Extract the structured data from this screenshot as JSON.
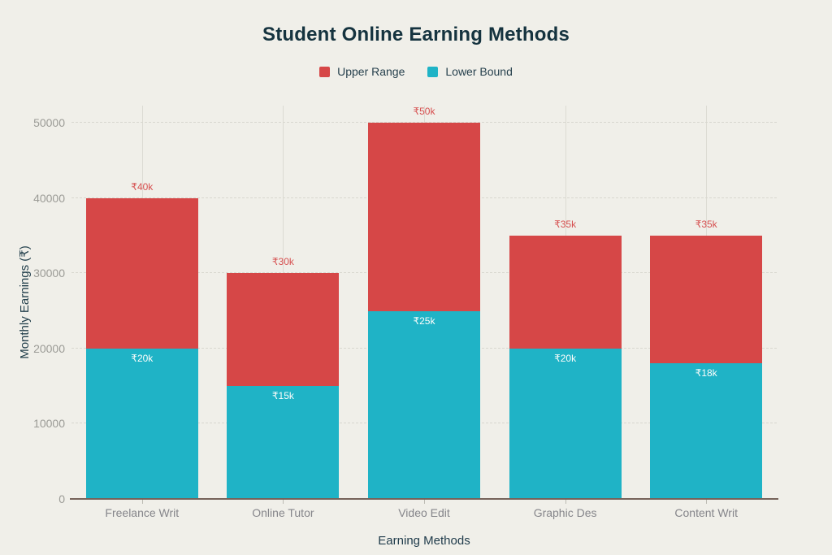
{
  "title": "Student Online Earning Methods",
  "legend": {
    "items": [
      {
        "label": "Upper Range",
        "color": "#d64747"
      },
      {
        "label": "Lower Bound",
        "color": "#1fb3c6"
      }
    ]
  },
  "chart_data": {
    "type": "bar",
    "title": "Student Online Earning Methods",
    "categories": [
      "Freelance Writ",
      "Online Tutor",
      "Video Edit",
      "Graphic Des",
      "Content Writ"
    ],
    "series": [
      {
        "name": "Upper Range",
        "color": "#d64747",
        "values": [
          40000,
          30000,
          50000,
          35000,
          35000
        ],
        "bar_labels": [
          "₹40k",
          "₹30k",
          "₹50k",
          "₹35k",
          "₹35k"
        ]
      },
      {
        "name": "Lower Bound",
        "color": "#1fb3c6",
        "values": [
          20000,
          15000,
          25000,
          20000,
          18000
        ],
        "bar_labels": [
          "₹20k",
          "₹15k",
          "₹25k",
          "₹20k",
          "₹18k"
        ]
      }
    ],
    "xlabel": "Earning Methods",
    "ylabel": "Monthly Earnings (₹)",
    "ylim": [
      0,
      50000
    ],
    "yticks": [
      0,
      10000,
      20000,
      30000,
      40000,
      50000
    ],
    "ytick_labels": [
      "0",
      "10000",
      "20000",
      "30000",
      "40000",
      "50000"
    ],
    "grid": "vertical solid lines at category centers, horizontal dashed lines at y ticks",
    "legend_position": "top center"
  },
  "colors": {
    "background": "#f0efe9",
    "title_text": "#15333f",
    "axis_title_text": "#1e3a4a",
    "y_tick_label": "#9b9b96",
    "x_tick_label": "#85858a",
    "bar_label_upper_text": "#d65050",
    "bar_label_lower_text": "#fdfdfb",
    "grid_vertical": "#dcdbd3",
    "grid_horizontal": "#d8d7cf",
    "axis_line": "#75635a"
  }
}
